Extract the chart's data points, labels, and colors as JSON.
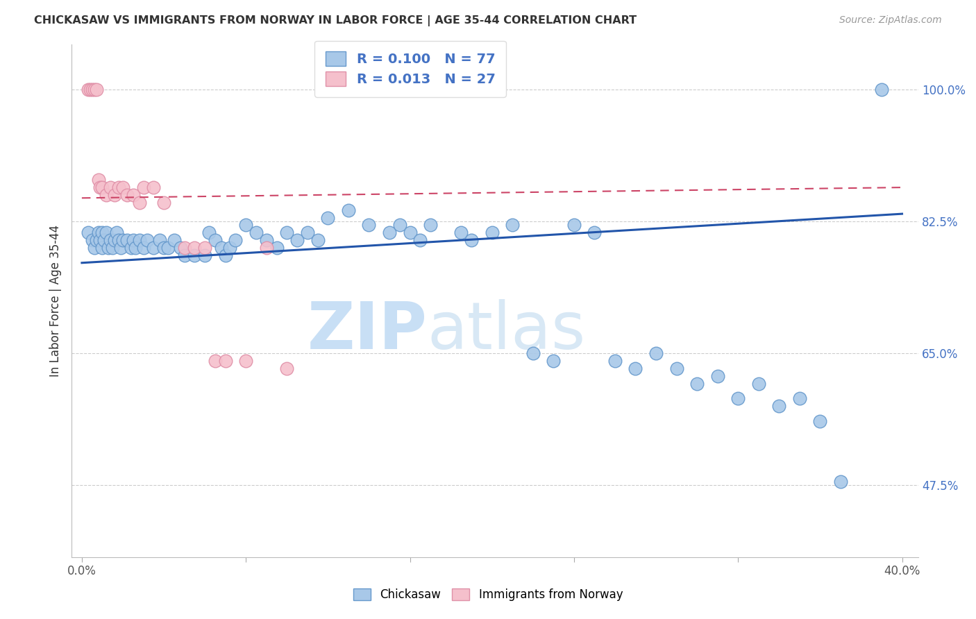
{
  "title": "CHICKASAW VS IMMIGRANTS FROM NORWAY IN LABOR FORCE | AGE 35-44 CORRELATION CHART",
  "source": "Source: ZipAtlas.com",
  "ylabel": "In Labor Force | Age 35-44",
  "xlim": [
    -0.005,
    0.408
  ],
  "ylim": [
    0.38,
    1.06
  ],
  "xtick_positions": [
    0.0,
    0.08,
    0.16,
    0.24,
    0.32,
    0.4
  ],
  "xticklabels": [
    "0.0%",
    "",
    "",
    "",
    "",
    "40.0%"
  ],
  "ytick_positions": [
    1.0,
    0.825,
    0.65,
    0.475
  ],
  "ytick_labels": [
    "100.0%",
    "82.5%",
    "65.0%",
    "47.5%"
  ],
  "ytick_color": "#4472c4",
  "xtick_color": "#555555",
  "legend_r1": "R = 0.100",
  "legend_n1": "N = 77",
  "legend_r2": "R = 0.013",
  "legend_n2": "N = 27",
  "blue_color": "#a8c8e8",
  "blue_edge_color": "#6699cc",
  "pink_color": "#f5c0cc",
  "pink_edge_color": "#e090a8",
  "blue_line_color": "#2255aa",
  "pink_line_color": "#cc4466",
  "legend_text_color": "#4472c4",
  "watermark_zip": "ZIP",
  "watermark_atlas": "atlas",
  "grid_color": "#cccccc",
  "background_color": "#ffffff",
  "blue_scatter_x": [
    0.003,
    0.005,
    0.006,
    0.007,
    0.008,
    0.009,
    0.01,
    0.01,
    0.011,
    0.012,
    0.013,
    0.014,
    0.015,
    0.016,
    0.017,
    0.018,
    0.019,
    0.02,
    0.022,
    0.024,
    0.025,
    0.026,
    0.028,
    0.03,
    0.032,
    0.035,
    0.038,
    0.04,
    0.042,
    0.045,
    0.048,
    0.05,
    0.055,
    0.06,
    0.062,
    0.065,
    0.068,
    0.07,
    0.072,
    0.075,
    0.08,
    0.085,
    0.09,
    0.095,
    0.1,
    0.105,
    0.11,
    0.115,
    0.12,
    0.13,
    0.14,
    0.15,
    0.155,
    0.16,
    0.165,
    0.17,
    0.185,
    0.19,
    0.2,
    0.21,
    0.22,
    0.23,
    0.24,
    0.25,
    0.26,
    0.27,
    0.28,
    0.29,
    0.3,
    0.31,
    0.32,
    0.33,
    0.34,
    0.35,
    0.36,
    0.37,
    0.39
  ],
  "blue_scatter_y": [
    0.81,
    0.8,
    0.79,
    0.8,
    0.81,
    0.8,
    0.79,
    0.81,
    0.8,
    0.81,
    0.79,
    0.8,
    0.79,
    0.8,
    0.81,
    0.8,
    0.79,
    0.8,
    0.8,
    0.79,
    0.8,
    0.79,
    0.8,
    0.79,
    0.8,
    0.79,
    0.8,
    0.79,
    0.79,
    0.8,
    0.79,
    0.78,
    0.78,
    0.78,
    0.81,
    0.8,
    0.79,
    0.78,
    0.79,
    0.8,
    0.82,
    0.81,
    0.8,
    0.79,
    0.81,
    0.8,
    0.81,
    0.8,
    0.83,
    0.84,
    0.82,
    0.81,
    0.82,
    0.81,
    0.8,
    0.82,
    0.81,
    0.8,
    0.81,
    0.82,
    0.65,
    0.64,
    0.82,
    0.81,
    0.64,
    0.63,
    0.65,
    0.63,
    0.61,
    0.62,
    0.59,
    0.61,
    0.58,
    0.59,
    0.56,
    0.48,
    1.0
  ],
  "pink_scatter_x": [
    0.003,
    0.004,
    0.005,
    0.006,
    0.007,
    0.008,
    0.009,
    0.01,
    0.012,
    0.014,
    0.016,
    0.018,
    0.02,
    0.022,
    0.025,
    0.028,
    0.03,
    0.035,
    0.04,
    0.05,
    0.055,
    0.06,
    0.065,
    0.07,
    0.08,
    0.09,
    0.1
  ],
  "pink_scatter_y": [
    1.0,
    1.0,
    1.0,
    1.0,
    1.0,
    0.88,
    0.87,
    0.87,
    0.86,
    0.87,
    0.86,
    0.87,
    0.87,
    0.86,
    0.86,
    0.85,
    0.87,
    0.87,
    0.85,
    0.79,
    0.79,
    0.79,
    0.64,
    0.64,
    0.64,
    0.79,
    0.63
  ],
  "blue_trend_x": [
    0.0,
    0.4
  ],
  "blue_trend_y": [
    0.77,
    0.835
  ],
  "pink_trend_x": [
    0.0,
    0.4
  ],
  "pink_trend_y": [
    0.856,
    0.87
  ]
}
